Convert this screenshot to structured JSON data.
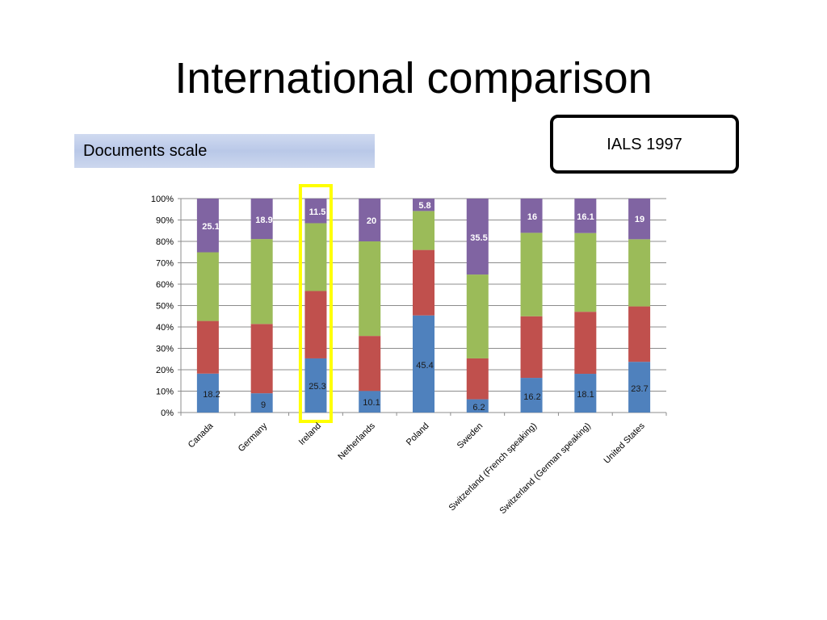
{
  "slide": {
    "title": "International comparison",
    "scale_label": "Documents scale",
    "survey_label": "IALS 1997"
  },
  "chart_data": {
    "type": "bar",
    "stacked": true,
    "percent_stacked": true,
    "categories": [
      "Canada",
      "Germany",
      "Ireland",
      "Netherlands",
      "Poland",
      "Sweden",
      "Switzerland (French speaking)",
      "Switzerland (German speaking)",
      "United States"
    ],
    "series": [
      {
        "color": "#4f81bd",
        "values": [
          18.2,
          9,
          25.3,
          10.1,
          45.4,
          6.2,
          16.2,
          18.1,
          23.7
        ],
        "labels": [
          "18.2",
          "9",
          "25.3",
          "10.1",
          "45.4",
          "6.2",
          "16.2",
          "18.1",
          "23.7"
        ]
      },
      {
        "color": "#c0504d",
        "values": [
          24.6,
          32.4,
          31.5,
          25.7,
          30.6,
          19.1,
          28.8,
          29.0,
          25.9
        ],
        "labels": []
      },
      {
        "color": "#9bbb59",
        "values": [
          32.1,
          39.7,
          31.7,
          44.2,
          18.2,
          39.2,
          39.0,
          36.8,
          31.4
        ],
        "labels": []
      },
      {
        "color": "#8064a2",
        "values": [
          25.1,
          18.9,
          11.5,
          20,
          5.8,
          35.5,
          16,
          16.1,
          19
        ],
        "labels": [
          "25.1",
          "18.9",
          "11.5",
          "20",
          "5.8",
          "35.5",
          "16",
          "16.1",
          "19"
        ]
      }
    ],
    "yticks": [
      "0%",
      "10%",
      "20%",
      "30%",
      "40%",
      "50%",
      "60%",
      "70%",
      "80%",
      "90%",
      "100%"
    ],
    "ylim": [
      0,
      100
    ],
    "grid": true,
    "highlighted_category": "Ireland",
    "highlight_color": "#ffff00"
  }
}
